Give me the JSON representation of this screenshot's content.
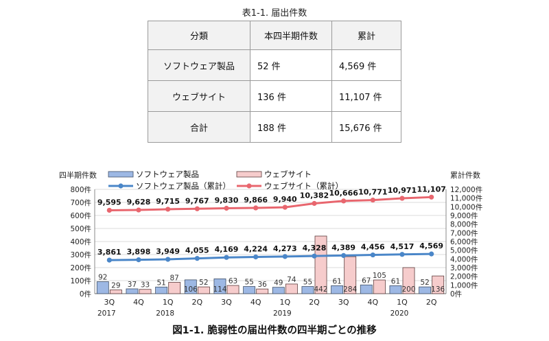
{
  "table": {
    "caption": "表1-1.  届出件数",
    "headers": [
      "分類",
      "本四半期件数",
      "累計"
    ],
    "rows": [
      {
        "category": "ソフトウェア製品",
        "quarter": "52 件",
        "total": "4,569 件"
      },
      {
        "category": "ウェブサイト",
        "quarter": "136 件",
        "total": "11,107 件"
      },
      {
        "category": "合計",
        "quarter": "188 件",
        "total": "15,676 件"
      }
    ]
  },
  "chart_data": {
    "type": "bar",
    "title": "図1-1. 脆弱性の届出件数の四半期ごとの推移",
    "ylabel_left": "四半期件数",
    "ylabel_right": "累計件数",
    "left_ticks": [
      "800件",
      "700件",
      "600件",
      "500件",
      "400件",
      "300件",
      "200件",
      "100件",
      "0件"
    ],
    "right_ticks": [
      "12,000件",
      "11,000件",
      "10,000件",
      "9,000件",
      "8,000件",
      "7,000件",
      "6,000件",
      "5,000件",
      "4,000件",
      "3,000件",
      "2,000件",
      "1,000件",
      "0件"
    ],
    "ylim_left": [
      0,
      800
    ],
    "ylim_right": [
      0,
      12000
    ],
    "categories": [
      "3Q",
      "4Q",
      "1Q",
      "2Q",
      "3Q",
      "4Q",
      "1Q",
      "2Q",
      "3Q",
      "4Q",
      "1Q",
      "2Q"
    ],
    "years": [
      {
        "label": "2017",
        "start_index": 0
      },
      {
        "label": "2018",
        "start_index": 2
      },
      {
        "label": "2019",
        "start_index": 6
      },
      {
        "label": "2020",
        "start_index": 10
      }
    ],
    "legend": {
      "software_bar": "ソフトウェア製品",
      "web_bar": "ウェブサイト",
      "software_line": "ソフトウェア製品（累計）",
      "web_line": "ウェブサイト（累計）"
    },
    "series": [
      {
        "name": "ソフトウェア製品",
        "kind": "bar",
        "axis": "left",
        "color": "#9db8e4",
        "values": [
          92,
          37,
          51,
          106,
          114,
          55,
          49,
          55,
          61,
          67,
          61,
          52
        ],
        "labels": [
          "92",
          "37",
          "51",
          "106",
          "114",
          "55",
          "49",
          "55",
          "61",
          "67",
          "61",
          "52"
        ]
      },
      {
        "name": "ウェブサイト",
        "kind": "bar",
        "axis": "left",
        "color": "#f6cccc",
        "values": [
          29,
          33,
          87,
          52,
          63,
          36,
          74,
          442,
          284,
          105,
          200,
          136
        ],
        "labels": [
          "29",
          "33",
          "87",
          "52",
          "63",
          "36",
          "74",
          "442",
          "284",
          "105",
          "200",
          "136"
        ]
      },
      {
        "name": "ソフトウェア製品（累計）",
        "kind": "line",
        "axis": "right",
        "color": "#4a86c8",
        "values": [
          3861,
          3898,
          3949,
          4055,
          4169,
          4224,
          4273,
          4328,
          4389,
          4456,
          4517,
          4569
        ],
        "labels": [
          "3,861",
          "3,898",
          "3,949",
          "4,055",
          "4,169",
          "4,224",
          "4,273",
          "4,328",
          "4,389",
          "4,456",
          "4,517",
          "4,569"
        ]
      },
      {
        "name": "ウェブサイト（累計）",
        "kind": "line",
        "axis": "right",
        "color": "#e8666e",
        "values": [
          9595,
          9628,
          9715,
          9767,
          9830,
          9866,
          9940,
          10382,
          10666,
          10771,
          10971,
          11107
        ],
        "labels": [
          "9,595",
          "9,628",
          "9,715",
          "9,767",
          "9,830",
          "9,866",
          "9,940",
          "10,382",
          "10,666",
          "10,771",
          "10,971",
          "11,107"
        ]
      }
    ],
    "colors": {
      "software_bar": "#9db8e4",
      "web_bar": "#f6cccc",
      "software_line": "#4a86c8",
      "web_line": "#e8666e",
      "grid": "#cfcfcf"
    }
  }
}
